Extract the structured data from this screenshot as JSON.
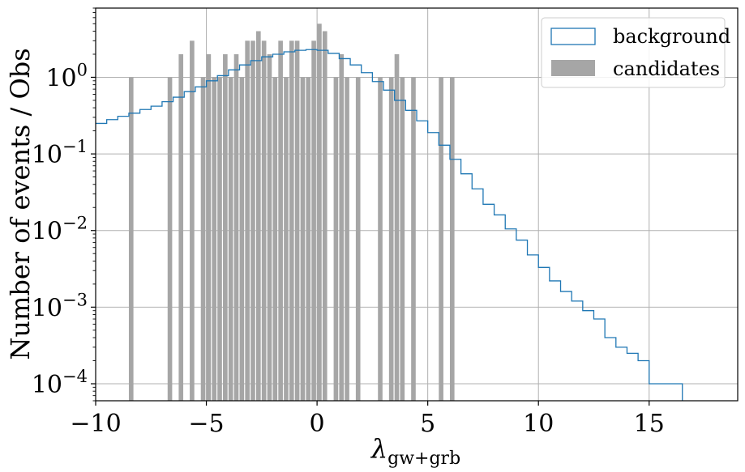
{
  "chart_data": {
    "type": "bar",
    "title": "",
    "xlabel": "λ",
    "xlabel_subscript": "gw+grb",
    "ylabel": "Number of events / Obs",
    "xlim": [
      -10,
      19
    ],
    "ylim": [
      6e-05,
      8
    ],
    "yscale": "log",
    "grid": true,
    "legend_position": "top-right",
    "x_ticks": [
      {
        "value": -10,
        "label": "−10"
      },
      {
        "value": -5,
        "label": "−5"
      },
      {
        "value": 0,
        "label": "0"
      },
      {
        "value": 5,
        "label": "5"
      },
      {
        "value": 10,
        "label": "10"
      },
      {
        "value": 15,
        "label": "15"
      }
    ],
    "y_ticks": [
      {
        "value": 1,
        "base": "10",
        "exp": "0"
      },
      {
        "value": 0.1,
        "base": "10",
        "exp": "−1"
      },
      {
        "value": 0.01,
        "base": "10",
        "exp": "−2"
      },
      {
        "value": 0.001,
        "base": "10",
        "exp": "−3"
      },
      {
        "value": 0.0001,
        "base": "10",
        "exp": "−4"
      }
    ],
    "series": [
      {
        "name": "background",
        "kind": "step",
        "color": "#1f77b4",
        "x": [
          -10,
          -9.5,
          -9,
          -8.5,
          -8,
          -7.5,
          -7,
          -6.5,
          -6,
          -5.5,
          -5,
          -4.5,
          -4,
          -3.5,
          -3,
          -2.5,
          -2,
          -1.5,
          -1,
          -0.5,
          0,
          0.5,
          1,
          1.5,
          2,
          2.5,
          3,
          3.5,
          4,
          4.5,
          5,
          5.5,
          6,
          6.5,
          7,
          7.5,
          8,
          8.5,
          9,
          9.5,
          10,
          10.5,
          11,
          11.5,
          12,
          12.5,
          13,
          13.5,
          14,
          14.5,
          15,
          15.5,
          16
        ],
        "y": [
          0.25,
          0.28,
          0.31,
          0.34,
          0.38,
          0.42,
          0.48,
          0.55,
          0.65,
          0.75,
          0.9,
          1.05,
          1.25,
          1.45,
          1.65,
          1.85,
          2.0,
          2.15,
          2.25,
          2.3,
          2.25,
          2.05,
          1.75,
          1.45,
          1.15,
          0.88,
          0.68,
          0.5,
          0.37,
          0.27,
          0.19,
          0.13,
          0.085,
          0.055,
          0.035,
          0.022,
          0.016,
          0.0105,
          0.0075,
          0.0048,
          0.0033,
          0.0022,
          0.0016,
          0.0012,
          0.0009,
          0.0007,
          0.0004,
          0.0003,
          0.00025,
          0.0002,
          0.0001,
          0.0001,
          0.0001
        ]
      },
      {
        "name": "candidates",
        "kind": "bar",
        "color": "#a6a6a6",
        "bin_width": 0.25,
        "x": [
          -8.5,
          -6.75,
          -6.25,
          -5.75,
          -5.25,
          -5.0,
          -4.75,
          -4.5,
          -4.25,
          -4.0,
          -3.75,
          -3.5,
          -3.25,
          -3.0,
          -2.75,
          -2.5,
          -2.25,
          -2.0,
          -1.75,
          -1.5,
          -1.25,
          -1.0,
          -0.75,
          -0.5,
          -0.25,
          0.0,
          0.25,
          0.75,
          1.0,
          1.25,
          1.75,
          2.75,
          3.25,
          3.5,
          3.75,
          4.25,
          5.5,
          6.0
        ],
        "y": [
          1,
          1,
          2,
          3,
          1,
          2,
          1,
          1,
          2,
          1,
          2,
          1,
          3,
          3,
          4,
          3,
          2,
          1,
          3,
          1,
          3,
          3,
          1,
          1,
          3,
          5,
          4,
          1,
          2,
          1,
          1,
          1,
          1,
          2,
          1,
          1,
          1,
          1
        ]
      }
    ]
  }
}
